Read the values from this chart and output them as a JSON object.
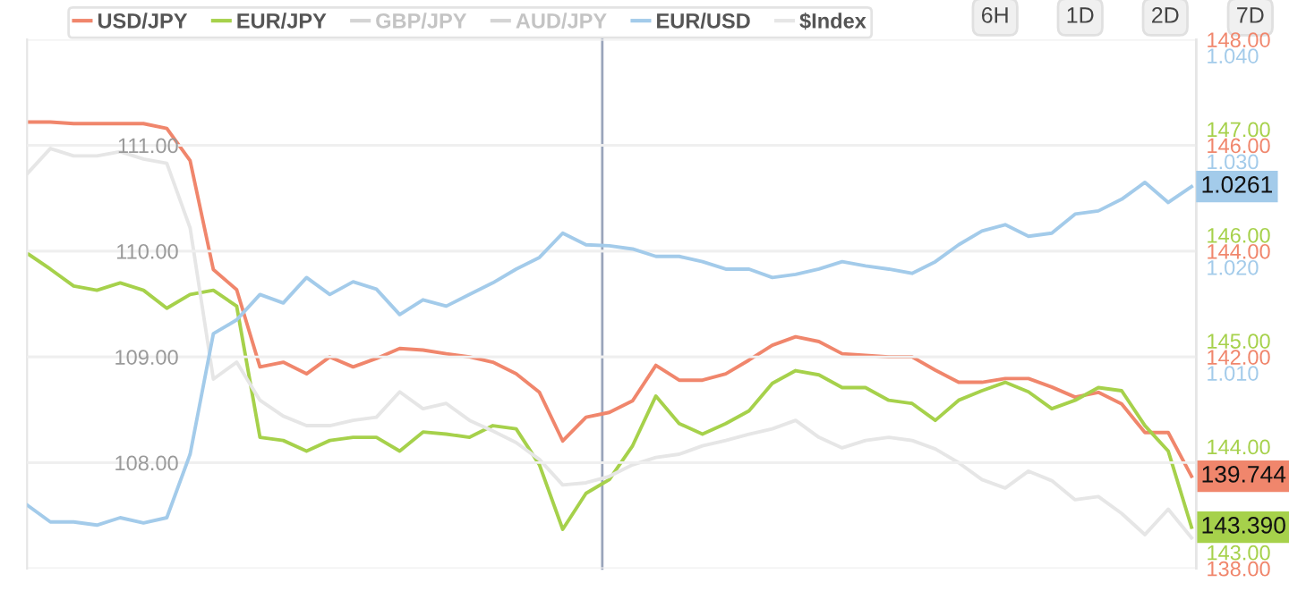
{
  "chart_data": [
    {
      "type": "line",
      "categories": [
        null,
        null,
        null,
        null,
        null,
        null,
        null,
        null,
        null,
        null,
        null,
        null,
        null,
        null,
        null,
        null,
        null,
        null,
        null,
        null,
        null,
        null,
        null,
        null,
        null,
        null,
        null,
        null,
        null,
        null,
        null,
        null,
        null,
        null,
        null,
        null,
        null,
        null,
        null,
        null,
        null,
        null,
        null,
        null,
        null,
        null,
        null,
        null,
        null,
        null,
        null
      ],
      "series": [
        {
          "name": "USD/JPY",
          "color": "#f0866c",
          "axis": "y",
          "values": [
            146.44,
            146.44,
            146.41,
            146.41,
            146.41,
            146.41,
            146.32,
            145.71,
            143.65,
            143.27,
            141.81,
            141.9,
            141.68,
            142.0,
            141.81,
            141.97,
            142.16,
            142.13,
            142.06,
            142.0,
            141.9,
            141.68,
            141.33,
            140.41,
            140.86,
            140.95,
            141.17,
            141.84,
            141.56,
            141.56,
            141.68,
            141.94,
            142.22,
            142.38,
            142.29,
            142.06,
            142.03,
            142.0,
            142.0,
            141.75,
            141.52,
            141.52,
            141.59,
            141.59,
            141.43,
            141.24,
            141.33,
            141.11,
            140.57,
            140.57,
            139.744
          ],
          "value_labels": [
            null,
            null,
            null,
            null,
            null,
            null,
            null,
            null,
            null,
            null,
            null,
            null,
            null,
            null,
            null,
            null,
            null,
            null,
            null,
            null,
            null,
            null,
            null,
            null,
            null,
            null,
            null,
            null,
            null,
            null,
            null,
            null,
            null,
            null,
            null,
            null,
            null,
            null,
            null,
            null,
            null,
            null,
            null,
            null,
            null,
            null,
            null,
            null,
            null,
            null,
            "139.744"
          ]
        },
        {
          "name": "EUR/JPY",
          "color": "#a6d14b",
          "axis": "y2",
          "values": [
            145.98,
            145.83,
            145.67,
            145.63,
            145.7,
            145.63,
            145.46,
            145.59,
            145.63,
            145.48,
            144.24,
            144.21,
            144.11,
            144.21,
            144.24,
            144.24,
            144.11,
            144.29,
            144.27,
            144.24,
            144.35,
            144.32,
            143.98,
            143.37,
            143.71,
            143.84,
            144.16,
            144.63,
            144.37,
            144.27,
            144.37,
            144.49,
            144.75,
            144.87,
            144.83,
            144.71,
            144.71,
            144.59,
            144.56,
            144.4,
            144.59,
            144.68,
            144.76,
            144.67,
            144.51,
            144.59,
            144.71,
            144.68,
            144.35,
            144.11,
            143.39
          ],
          "value_labels": [
            null,
            null,
            null,
            null,
            null,
            null,
            null,
            null,
            null,
            null,
            null,
            null,
            null,
            null,
            null,
            null,
            null,
            null,
            null,
            null,
            null,
            null,
            null,
            null,
            null,
            null,
            null,
            null,
            null,
            null,
            null,
            null,
            null,
            null,
            null,
            null,
            null,
            null,
            null,
            null,
            null,
            null,
            null,
            null,
            null,
            null,
            null,
            null,
            null,
            null,
            "143.390"
          ]
        },
        {
          "name": "GBP/JPY",
          "color": "#d4d4d4",
          "axis": "y",
          "values": [
            null,
            null,
            null,
            null,
            null,
            null,
            null,
            null,
            null,
            null,
            null,
            null,
            null,
            null,
            null,
            null,
            null,
            null,
            null,
            null,
            null,
            null,
            null,
            null,
            null,
            null,
            null,
            null,
            null,
            null,
            null,
            null,
            null,
            null,
            null,
            null,
            null,
            null,
            null,
            null,
            null,
            null,
            null,
            null,
            null,
            null,
            null,
            null,
            null,
            null,
            null
          ]
        },
        {
          "name": "AUD/JPY",
          "color": "#d4d4d4",
          "axis": "y",
          "values": [
            null,
            null,
            null,
            null,
            null,
            null,
            null,
            null,
            null,
            null,
            null,
            null,
            null,
            null,
            null,
            null,
            null,
            null,
            null,
            null,
            null,
            null,
            null,
            null,
            null,
            null,
            null,
            null,
            null,
            null,
            null,
            null,
            null,
            null,
            null,
            null,
            null,
            null,
            null,
            null,
            null,
            null,
            null,
            null,
            null,
            null,
            null,
            null,
            null,
            null,
            null
          ]
        }
      ],
      "ylim": [
        138,
        148
      ],
      "yticks": [
        {
          "value": 138,
          "label": "138.00"
        },
        {
          "value": 140,
          "label": null
        },
        {
          "value": 142,
          "label": "142.00"
        },
        {
          "value": 144,
          "label": "144.00"
        },
        {
          "value": 146,
          "label": "146.00"
        },
        {
          "value": 148,
          "label": "148.00"
        }
      ],
      "y2lim": [
        143,
        148
      ],
      "y2ticks": [
        {
          "value": 143,
          "label": "143.00"
        },
        {
          "value": 144,
          "label": "144.00"
        },
        {
          "value": 145,
          "label": "145.00"
        },
        {
          "value": 146,
          "label": "146.00"
        },
        {
          "value": 147,
          "label": "147.00"
        }
      ],
      "annotations": [
        "6H",
        "1D",
        "2D",
        "7D"
      ],
      "grid": "y",
      "legend": "top left",
      "marker": "none",
      "line_style": "solid"
    },
    {
      "type": "line",
      "categories": [
        null,
        null,
        null,
        null,
        null,
        null,
        null,
        null,
        null,
        null,
        null,
        null,
        null,
        null,
        null,
        null,
        null,
        null,
        null,
        null,
        null,
        null,
        null,
        null,
        null,
        null,
        null,
        null,
        null,
        null,
        null,
        null,
        null,
        null,
        null,
        null,
        null,
        null,
        null,
        null,
        null,
        null,
        null,
        null,
        null,
        null,
        null,
        null,
        null,
        null,
        null
      ],
      "series": [
        {
          "name": "EUR/USD",
          "color": "#a3cbea",
          "axis": "y2",
          "values": [
            0.996,
            0.9944,
            0.9944,
            0.9941,
            0.9948,
            0.9943,
            0.9948,
            1.0008,
            1.0122,
            1.0135,
            1.0159,
            1.0151,
            1.0175,
            1.0159,
            1.0171,
            1.0164,
            1.014,
            1.0154,
            1.0148,
            1.0159,
            1.017,
            1.0183,
            1.0194,
            1.0217,
            1.0206,
            1.0205,
            1.0202,
            1.0195,
            1.0195,
            1.019,
            1.0183,
            1.0183,
            1.0175,
            1.0178,
            1.0183,
            1.019,
            1.0186,
            1.0183,
            1.0179,
            1.019,
            1.0206,
            1.0219,
            1.0225,
            1.0214,
            1.0217,
            1.0235,
            1.0238,
            1.0249,
            1.0265,
            1.0246,
            1.0261
          ],
          "value_labels": [
            null,
            null,
            null,
            null,
            null,
            null,
            null,
            null,
            null,
            null,
            null,
            null,
            null,
            null,
            null,
            null,
            null,
            null,
            null,
            null,
            null,
            null,
            null,
            null,
            null,
            null,
            null,
            null,
            null,
            null,
            null,
            null,
            null,
            null,
            null,
            null,
            null,
            null,
            null,
            null,
            null,
            null,
            null,
            null,
            null,
            null,
            null,
            null,
            null,
            null,
            "1.0261"
          ]
        },
        {
          "name": "$Index",
          "color": "#e6e6e6",
          "axis": "y",
          "values": [
            110.73,
            110.97,
            110.9,
            110.9,
            110.94,
            110.87,
            110.83,
            110.22,
            108.79,
            108.95,
            108.59,
            108.44,
            108.35,
            108.35,
            108.4,
            108.43,
            108.67,
            108.51,
            108.56,
            108.4,
            108.3,
            108.19,
            108.03,
            107.79,
            107.81,
            107.87,
            107.98,
            108.05,
            108.08,
            108.16,
            108.21,
            108.27,
            108.32,
            108.4,
            108.24,
            108.14,
            108.21,
            108.24,
            108.21,
            108.13,
            108.0,
            107.84,
            107.76,
            107.92,
            107.83,
            107.65,
            107.68,
            107.52,
            107.32,
            107.56,
            107.29
          ]
        }
      ],
      "ylim": [
        107,
        112
      ],
      "yticks": [
        {
          "value": 108,
          "label": "108.00"
        },
        {
          "value": 109,
          "label": "109.00"
        },
        {
          "value": 110,
          "label": "110.00"
        },
        {
          "value": 111,
          "label": "111.00"
        }
      ],
      "y2lim": [
        0.99,
        1.04
      ],
      "y2ticks": [
        {
          "value": 1.01,
          "label": "1.010"
        },
        {
          "value": 1.02,
          "label": "1.020"
        },
        {
          "value": 1.03,
          "label": "1.030"
        },
        {
          "value": 1.04,
          "label": "1.040"
        }
      ],
      "grid": "y",
      "legend": "top",
      "marker": "none",
      "line_style": "solid"
    }
  ]
}
